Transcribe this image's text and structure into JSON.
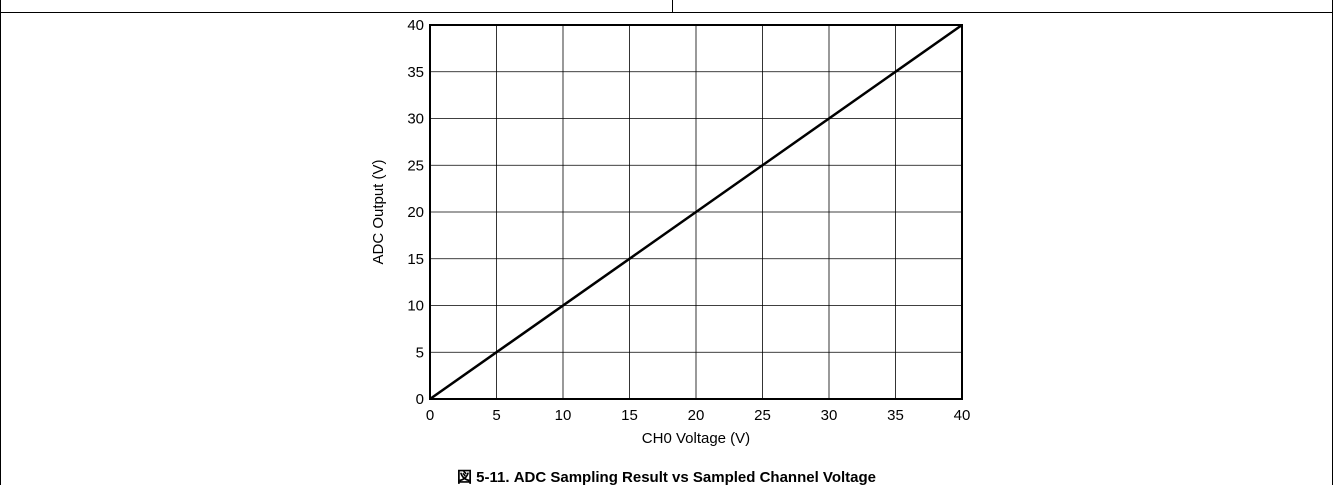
{
  "chart_data": {
    "type": "line",
    "title": "",
    "caption": "図 5-11. ADC Sampling Result vs Sampled Channel Voltage",
    "xlabel": "CH0 Voltage (V)",
    "ylabel": "ADC Output (V)",
    "xlim": [
      0,
      40
    ],
    "ylim": [
      0,
      40
    ],
    "x_ticks": [
      "0",
      "5",
      "10",
      "15",
      "20",
      "25",
      "30",
      "35",
      "40"
    ],
    "y_ticks": [
      "0",
      "5",
      "10",
      "15",
      "20",
      "25",
      "30",
      "35",
      "40"
    ],
    "grid": true,
    "series": [
      {
        "x": [
          0,
          40
        ],
        "y": [
          0,
          40
        ],
        "color": "#000000"
      }
    ]
  }
}
